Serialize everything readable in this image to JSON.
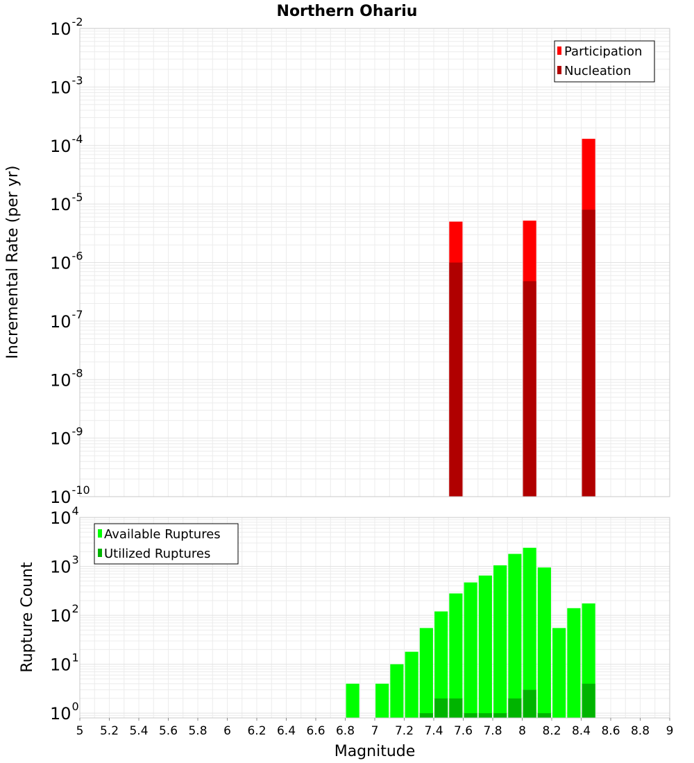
{
  "chart_data": [
    {
      "type": "bar",
      "title": "Northern Ohariu",
      "xlabel": "Magnitude",
      "ylabel": "Incremental Rate (per yr)",
      "yscale": "log",
      "xlim": [
        5,
        9
      ],
      "ylim": [
        1e-10,
        0.01
      ],
      "grid": true,
      "legend_position": "top-right",
      "bar_width": 0.09,
      "series": [
        {
          "name": "Participation",
          "color": "#ff0000",
          "x": [
            7.55,
            8.05,
            8.45
          ],
          "values": [
            5e-06,
            5.2e-06,
            0.00013
          ]
        },
        {
          "name": "Nucleation",
          "color": "#b00000",
          "x": [
            7.55,
            8.05,
            8.45
          ],
          "values": [
            1e-06,
            4.8e-07,
            8e-06
          ]
        }
      ]
    },
    {
      "type": "bar",
      "title": "",
      "xlabel": "Magnitude",
      "ylabel": "Rupture Count",
      "yscale": "log",
      "xlim": [
        5,
        9
      ],
      "ylim": [
        0.8,
        10000
      ],
      "grid": true,
      "legend_position": "top-left",
      "bar_width": 0.09,
      "series": [
        {
          "name": "Available Ruptures",
          "color": "#00ff00",
          "x": [
            6.85,
            7.05,
            7.15,
            7.25,
            7.35,
            7.45,
            7.55,
            7.65,
            7.75,
            7.85,
            7.95,
            8.05,
            8.15,
            8.25,
            8.35,
            8.45
          ],
          "values": [
            4,
            4,
            10,
            18,
            55,
            120,
            280,
            470,
            650,
            1050,
            1800,
            2400,
            950,
            55,
            140,
            175
          ]
        },
        {
          "name": "Utilized Ruptures",
          "color": "#00b400",
          "x": [
            7.35,
            7.45,
            7.55,
            7.65,
            7.75,
            7.85,
            7.95,
            8.05,
            8.15,
            8.45
          ],
          "values": [
            1,
            2,
            2,
            1,
            1,
            1,
            2,
            3,
            1,
            4
          ]
        }
      ]
    }
  ],
  "x_ticks": [
    "5",
    "5.2",
    "5.4",
    "5.6",
    "5.8",
    "6",
    "6.2",
    "6.4",
    "6.6",
    "6.8",
    "7",
    "7.2",
    "7.4",
    "7.6",
    "7.8",
    "8",
    "8.2",
    "8.4",
    "8.6",
    "8.8",
    "9"
  ],
  "top_y_ticks": [
    {
      "base": "10",
      "exp": "-10",
      "value": 1e-10
    },
    {
      "base": "10",
      "exp": "-9",
      "value": 1e-09
    },
    {
      "base": "10",
      "exp": "-8",
      "value": 1e-08
    },
    {
      "base": "10",
      "exp": "-7",
      "value": 1e-07
    },
    {
      "base": "10",
      "exp": "-6",
      "value": 1e-06
    },
    {
      "base": "10",
      "exp": "-5",
      "value": 1e-05
    },
    {
      "base": "10",
      "exp": "-4",
      "value": 0.0001
    },
    {
      "base": "10",
      "exp": "-3",
      "value": 0.001
    },
    {
      "base": "10",
      "exp": "-2",
      "value": 0.01
    }
  ],
  "bottom_y_ticks": [
    {
      "base": "10",
      "exp": "0",
      "value": 1
    },
    {
      "base": "10",
      "exp": "1",
      "value": 10
    },
    {
      "base": "10",
      "exp": "2",
      "value": 100
    },
    {
      "base": "10",
      "exp": "3",
      "value": 1000
    },
    {
      "base": "10",
      "exp": "4",
      "value": 10000
    }
  ]
}
